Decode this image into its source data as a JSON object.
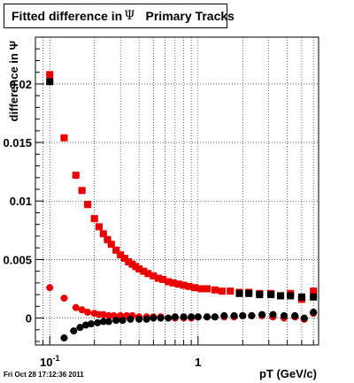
{
  "title": {
    "prefix": "Fitted difference in",
    "symbol": "Ψ",
    "suffix": "Primary Tracks"
  },
  "timestamp": "Fri Oct 28 17:12:36 2011",
  "colors": {
    "series_red": "#ee0000",
    "series_black": "#000000",
    "grid": "#000000",
    "frame": "#000000"
  },
  "chart_data": {
    "type": "scatter",
    "xlabel": "pT (GeV/c)",
    "ylabel": "difference in Ψ",
    "x_scale": "log",
    "xlim": [
      0.08,
      6.5
    ],
    "ylim": [
      -0.0023,
      0.024
    ],
    "grid": true,
    "y_ticks": [
      {
        "value": 0,
        "label": "0"
      },
      {
        "value": 0.005,
        "label": "0.005"
      },
      {
        "value": 0.01,
        "label": "0.01"
      },
      {
        "value": 0.015,
        "label": "0.015"
      },
      {
        "value": 0.02,
        "label": "0.02"
      }
    ],
    "x_ticks": [
      {
        "value": 0.1,
        "label": "10",
        "exponent": "-1"
      },
      {
        "value": 1,
        "label": "1",
        "exponent": ""
      }
    ],
    "series": [
      {
        "color": "red",
        "marker": "square",
        "x": [
          0.1,
          0.125,
          0.15,
          0.165,
          0.18,
          0.2,
          0.215,
          0.23,
          0.245,
          0.26,
          0.28,
          0.3,
          0.32,
          0.34,
          0.36,
          0.38,
          0.4,
          0.43,
          0.46,
          0.5,
          0.54,
          0.58,
          0.63,
          0.68,
          0.74,
          0.8,
          0.87,
          0.95,
          1.05,
          1.15,
          1.3,
          1.45,
          1.65,
          1.9,
          2.2,
          2.6,
          3.1,
          3.6,
          4.2,
          5.0,
          6.0
        ],
        "y": [
          0.0208,
          0.0154,
          0.0122,
          0.0109,
          0.0097,
          0.0085,
          0.0078,
          0.0072,
          0.0067,
          0.0063,
          0.0058,
          0.0054,
          0.0051,
          0.0048,
          0.0046,
          0.0044,
          0.0042,
          0.004,
          0.0038,
          0.0036,
          0.0034,
          0.0033,
          0.0031,
          0.003,
          0.0029,
          0.0028,
          0.0027,
          0.0026,
          0.0025,
          0.0025,
          0.0024,
          0.0023,
          0.0023,
          0.0022,
          0.0022,
          0.0021,
          0.0021,
          0.0019,
          0.0021,
          0.0016,
          0.0023
        ]
      },
      {
        "color": "black",
        "marker": "square",
        "x": [
          0.1,
          1.9,
          2.2,
          2.6,
          3.1,
          3.6,
          4.2,
          5.0,
          6.0
        ],
        "y": [
          0.0202,
          0.0021,
          0.0021,
          0.002,
          0.002,
          0.0019,
          0.0019,
          0.0018,
          0.0018
        ]
      },
      {
        "color": "red",
        "marker": "circle",
        "x": [
          0.1,
          0.125,
          0.15,
          0.165,
          0.18,
          0.2,
          0.215,
          0.23,
          0.25,
          0.27,
          0.3,
          0.33,
          0.36,
          0.4,
          0.45,
          0.5,
          0.56,
          0.63,
          0.7,
          0.8,
          0.9,
          1.0,
          1.15,
          1.3,
          1.5,
          1.75,
          2.0,
          2.3,
          2.7,
          3.2,
          3.8,
          4.5,
          5.2,
          6.0
        ],
        "y": [
          0.0026,
          0.0017,
          0.0009,
          0.0007,
          0.0005,
          0.0004,
          0.0003,
          0.0003,
          0.0002,
          0.0002,
          0.0002,
          0.0002,
          0.0002,
          0.0001,
          0.0001,
          0.0001,
          0.0001,
          0.0,
          0.0,
          0.0,
          0.0,
          0.0001,
          0.0001,
          0.0001,
          0.0001,
          0.0001,
          0.0002,
          0.0002,
          0.0002,
          0.0001,
          0.0,
          0.0001,
          -0.0001,
          0.0004
        ]
      },
      {
        "color": "black",
        "marker": "circle",
        "x": [
          0.125,
          0.145,
          0.16,
          0.175,
          0.19,
          0.21,
          0.23,
          0.25,
          0.28,
          0.31,
          0.35,
          0.4,
          0.45,
          0.5,
          0.56,
          0.63,
          0.7,
          0.8,
          0.9,
          1.0,
          1.15,
          1.3,
          1.5,
          1.75,
          2.0,
          2.3,
          2.7,
          3.2,
          3.8,
          4.5,
          5.2,
          6.0
        ],
        "y": [
          -0.0017,
          -0.0011,
          -0.0008,
          -0.0006,
          -0.0005,
          -0.0004,
          -0.0003,
          -0.0003,
          -0.0002,
          -0.0002,
          -0.0001,
          -0.0001,
          -0.0001,
          0.0,
          0.0,
          0.0,
          0.0001,
          0.0001,
          0.0001,
          0.0001,
          0.0001,
          0.0001,
          0.0002,
          0.0002,
          0.0002,
          0.0002,
          0.0003,
          0.0003,
          0.0002,
          0.0002,
          0.0,
          0.0005
        ]
      }
    ]
  }
}
